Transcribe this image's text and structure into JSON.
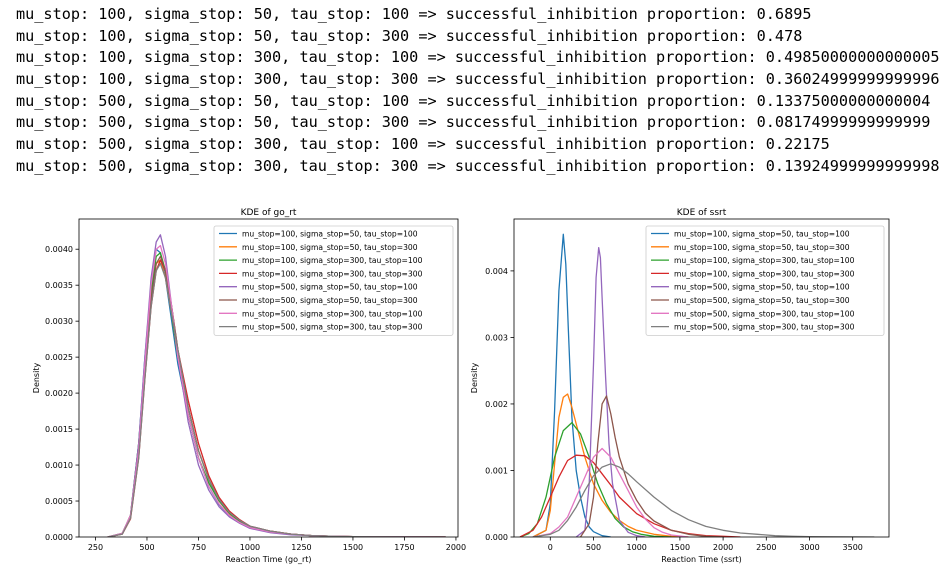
{
  "output_lines": [
    "mu_stop: 100, sigma_stop: 50, tau_stop: 100 => successful_inhibition proportion: 0.6895",
    "mu_stop: 100, sigma_stop: 50, tau_stop: 300 => successful_inhibition proportion: 0.478",
    "mu_stop: 100, sigma_stop: 300, tau_stop: 100 => successful_inhibition proportion: 0.49850000000000005",
    "mu_stop: 100, sigma_stop: 300, tau_stop: 300 => successful_inhibition proportion: 0.36024999999999996",
    "mu_stop: 500, sigma_stop: 50, tau_stop: 100 => successful_inhibition proportion: 0.13375000000000004",
    "mu_stop: 500, sigma_stop: 50, tau_stop: 300 => successful_inhibition proportion: 0.08174999999999999",
    "mu_stop: 500, sigma_stop: 300, tau_stop: 100 => successful_inhibition proportion: 0.22175",
    "mu_stop: 500, sigma_stop: 300, tau_stop: 300 => successful_inhibition proportion: 0.13924999999999998"
  ],
  "colors": [
    "#1f77b4",
    "#ff7f0e",
    "#2ca02c",
    "#d62728",
    "#9467bd",
    "#8c564b",
    "#e377c2",
    "#7f7f7f"
  ],
  "chart_data": [
    {
      "type": "line",
      "title": "KDE of go_rt",
      "xlabel": "Reaction Time (go_rt)",
      "ylabel": "Density",
      "xlim": [
        170,
        2010
      ],
      "ylim": [
        0,
        0.00442
      ],
      "xticks": [
        250,
        500,
        750,
        1000,
        1250,
        1500,
        1750,
        2000
      ],
      "xtick_labels": [
        "250",
        "500",
        "750",
        "1000",
        "1250",
        "1500",
        "1750",
        "2000"
      ],
      "yticks": [
        0,
        0.0005,
        0.001,
        0.0015,
        0.002,
        0.0025,
        0.003,
        0.0035,
        0.004
      ],
      "ytick_labels": [
        "0.0000",
        "0.0005",
        "0.0010",
        "0.0015",
        "0.0020",
        "0.0025",
        "0.0030",
        "0.0035",
        "0.0040"
      ],
      "legend_position": "top-right",
      "grid": false,
      "series": [
        {
          "name": "mu_stop=100, sigma_stop=50, tau_stop=100",
          "x": [
            310,
            380,
            420,
            460,
            490,
            520,
            545,
            565,
            590,
            620,
            650,
            700,
            750,
            800,
            850,
            900,
            950,
            1000,
            1100,
            1200,
            1300,
            1400,
            1500,
            1600,
            1800,
            1950
          ],
          "y": [
            0,
            5e-05,
            0.0003,
            0.0013,
            0.0025,
            0.0035,
            0.004,
            0.00395,
            0.0036,
            0.003,
            0.0024,
            0.0017,
            0.0011,
            0.0007,
            0.00045,
            0.0003,
            0.0002,
            0.00013,
            7e-05,
            4e-05,
            2e-05,
            1e-05,
            5e-06,
            3e-06,
            1e-06,
            0
          ]
        },
        {
          "name": "mu_stop=100, sigma_stop=50, tau_stop=300",
          "x": [
            310,
            380,
            420,
            460,
            490,
            520,
            545,
            565,
            590,
            620,
            650,
            700,
            750,
            800,
            850,
            900,
            950,
            1000,
            1100,
            1200,
            1300,
            1400,
            1500,
            1600,
            1800,
            1950
          ],
          "y": [
            0,
            5e-05,
            0.0003,
            0.0012,
            0.0023,
            0.0033,
            0.0038,
            0.00385,
            0.0036,
            0.0031,
            0.0025,
            0.0018,
            0.0012,
            0.0008,
            0.0005,
            0.00032,
            0.00022,
            0.00014,
            8e-05,
            4e-05,
            2e-05,
            1e-05,
            5e-06,
            3e-06,
            1e-06,
            0
          ]
        },
        {
          "name": "mu_stop=100, sigma_stop=300, tau_stop=100",
          "x": [
            310,
            380,
            420,
            460,
            490,
            520,
            545,
            565,
            590,
            620,
            650,
            700,
            750,
            800,
            850,
            900,
            950,
            1000,
            1100,
            1200,
            1300,
            1400,
            1500,
            1600,
            1800,
            1950
          ],
          "y": [
            0,
            5e-05,
            0.0003,
            0.0013,
            0.0024,
            0.0034,
            0.0039,
            0.00395,
            0.0037,
            0.0031,
            0.0025,
            0.0017,
            0.0011,
            0.00075,
            0.0005,
            0.00033,
            0.00022,
            0.00014,
            7e-05,
            4e-05,
            2e-05,
            1e-05,
            5e-06,
            3e-06,
            1e-06,
            0
          ]
        },
        {
          "name": "mu_stop=100, sigma_stop=300, tau_stop=300",
          "x": [
            310,
            380,
            420,
            460,
            490,
            520,
            545,
            565,
            590,
            620,
            650,
            700,
            750,
            800,
            850,
            900,
            950,
            1000,
            1100,
            1200,
            1300,
            1400,
            1500,
            1600,
            1800,
            1950
          ],
          "y": [
            0,
            4e-05,
            0.00025,
            0.0011,
            0.0022,
            0.0032,
            0.0037,
            0.00385,
            0.0037,
            0.0032,
            0.0026,
            0.0019,
            0.0013,
            0.00085,
            0.00055,
            0.00036,
            0.00024,
            0.00015,
            8e-05,
            4e-05,
            2e-05,
            1e-05,
            5e-06,
            3e-06,
            1e-06,
            0
          ]
        },
        {
          "name": "mu_stop=500, sigma_stop=50, tau_stop=100",
          "x": [
            310,
            380,
            420,
            460,
            490,
            520,
            545,
            565,
            590,
            620,
            650,
            700,
            750,
            800,
            850,
            900,
            950,
            1000,
            1100,
            1200,
            1300,
            1400,
            1500,
            1600,
            1800,
            1950
          ],
          "y": [
            0,
            5e-05,
            0.0003,
            0.0013,
            0.0025,
            0.0036,
            0.0041,
            0.0042,
            0.0039,
            0.0032,
            0.0025,
            0.0016,
            0.001,
            0.00065,
            0.00042,
            0.00028,
            0.00019,
            0.00012,
            6e-05,
            3e-05,
            2e-05,
            1e-05,
            5e-06,
            3e-06,
            1e-06,
            0
          ]
        },
        {
          "name": "mu_stop=500, sigma_stop=50, tau_stop=300",
          "x": [
            310,
            380,
            420,
            460,
            490,
            520,
            545,
            565,
            590,
            620,
            650,
            700,
            750,
            800,
            850,
            900,
            950,
            1000,
            1100,
            1200,
            1300,
            1400,
            1500,
            1600,
            1800,
            1950
          ],
          "y": [
            0,
            4e-05,
            0.00028,
            0.0012,
            0.0023,
            0.0033,
            0.0038,
            0.0039,
            0.0037,
            0.0032,
            0.0026,
            0.0018,
            0.0012,
            0.0008,
            0.00052,
            0.00034,
            0.00023,
            0.00015,
            8e-05,
            4e-05,
            2e-05,
            1e-05,
            5e-06,
            3e-06,
            1e-06,
            0
          ]
        },
        {
          "name": "mu_stop=500, sigma_stop=300, tau_stop=100",
          "x": [
            310,
            380,
            420,
            460,
            490,
            520,
            545,
            565,
            590,
            620,
            650,
            700,
            750,
            800,
            850,
            900,
            950,
            1000,
            1100,
            1200,
            1300,
            1400,
            1500,
            1600,
            1800,
            1950
          ],
          "y": [
            0,
            5e-05,
            0.0003,
            0.0012,
            0.0024,
            0.0035,
            0.004,
            0.00405,
            0.0038,
            0.0032,
            0.0025,
            0.0017,
            0.0011,
            0.0007,
            0.00046,
            0.0003,
            0.0002,
            0.00013,
            7e-05,
            4e-05,
            2e-05,
            1e-05,
            5e-06,
            3e-06,
            1e-06,
            0
          ]
        },
        {
          "name": "mu_stop=500, sigma_stop=300, tau_stop=300",
          "x": [
            310,
            380,
            420,
            460,
            490,
            520,
            545,
            565,
            590,
            620,
            650,
            700,
            750,
            800,
            850,
            900,
            950,
            1000,
            1100,
            1200,
            1300,
            1400,
            1500,
            1600,
            1800,
            1950
          ],
          "y": [
            0,
            4e-05,
            0.00026,
            0.0011,
            0.0022,
            0.0032,
            0.0037,
            0.0038,
            0.0036,
            0.0031,
            0.0026,
            0.0018,
            0.0012,
            0.0008,
            0.00052,
            0.00034,
            0.00023,
            0.00015,
            8e-05,
            4e-05,
            2e-05,
            1e-05,
            5e-06,
            3e-06,
            1e-06,
            0
          ]
        }
      ]
    },
    {
      "type": "line",
      "title": "KDE of ssrt",
      "xlabel": "Reaction Time (ssrt)",
      "ylabel": "Density",
      "xlim": [
        -420,
        3920
      ],
      "ylim": [
        0,
        0.00478
      ],
      "xticks": [
        0,
        500,
        1000,
        1500,
        2000,
        2500,
        3000,
        3500
      ],
      "xtick_labels": [
        "0",
        "500",
        "1000",
        "1500",
        "2000",
        "2500",
        "3000",
        "3500"
      ],
      "yticks": [
        0,
        0.001,
        0.002,
        0.003,
        0.004
      ],
      "ytick_labels": [
        "0.000",
        "0.001",
        "0.002",
        "0.003",
        "0.004"
      ],
      "legend_position": "top-right",
      "grid": false,
      "series": [
        {
          "name": "mu_stop=100, sigma_stop=50, tau_stop=100",
          "x": [
            -200,
            -50,
            0,
            50,
            100,
            150,
            180,
            210,
            250,
            300,
            350,
            400,
            450,
            500,
            600,
            700
          ],
          "y": [
            0,
            0.0001,
            0.0005,
            0.0019,
            0.0037,
            0.00455,
            0.0041,
            0.0031,
            0.0018,
            0.001,
            0.0006,
            0.0003,
            0.00015,
            8e-05,
            2e-05,
            0
          ]
        },
        {
          "name": "mu_stop=100, sigma_stop=50, tau_stop=300",
          "x": [
            -200,
            -50,
            0,
            50,
            100,
            150,
            200,
            250,
            300,
            400,
            500,
            600,
            700,
            800,
            900,
            1000,
            1200,
            1400,
            1600
          ],
          "y": [
            0,
            0.0001,
            0.0004,
            0.0011,
            0.0018,
            0.0021,
            0.00215,
            0.00195,
            0.0017,
            0.0012,
            0.0008,
            0.00055,
            0.00037,
            0.00025,
            0.00016,
            0.0001,
            4e-05,
            1e-05,
            0
          ]
        },
        {
          "name": "mu_stop=100, sigma_stop=300, tau_stop=100",
          "x": [
            -350,
            -250,
            -150,
            -50,
            50,
            150,
            250,
            350,
            450,
            550,
            650,
            750,
            850,
            950,
            1050,
            1200,
            1400
          ],
          "y": [
            0,
            5e-05,
            0.0002,
            0.0006,
            0.0012,
            0.0016,
            0.00172,
            0.00155,
            0.0012,
            0.0008,
            0.0005,
            0.00028,
            0.00015,
            8e-05,
            4e-05,
            1e-05,
            0
          ]
        },
        {
          "name": "mu_stop=100, sigma_stop=300, tau_stop=300",
          "x": [
            -350,
            -200,
            -100,
            0,
            100,
            200,
            300,
            400,
            500,
            600,
            700,
            800,
            1000,
            1200,
            1400,
            1600,
            1800,
            2000,
            2200
          ],
          "y": [
            0,
            0.0001,
            0.0003,
            0.0006,
            0.0009,
            0.00115,
            0.00123,
            0.00122,
            0.00112,
            0.00095,
            0.00078,
            0.0006,
            0.00035,
            0.0002,
            0.0001,
            5e-05,
            2e-05,
            1e-05,
            0
          ]
        },
        {
          "name": "mu_stop=500, sigma_stop=50, tau_stop=100",
          "x": [
            300,
            400,
            450,
            500,
            530,
            560,
            580,
            600,
            640,
            680,
            720,
            800,
            900,
            1000,
            1100
          ],
          "y": [
            0,
            0.0001,
            0.0008,
            0.0026,
            0.0039,
            0.00435,
            0.0042,
            0.0036,
            0.0024,
            0.0014,
            0.0008,
            0.00025,
            7e-05,
            2e-05,
            0
          ]
        },
        {
          "name": "mu_stop=500, sigma_stop=50, tau_stop=300",
          "x": [
            350,
            450,
            500,
            550,
            600,
            650,
            700,
            750,
            800,
            900,
            1000,
            1100,
            1200,
            1400,
            1600,
            1800,
            2000
          ],
          "y": [
            0,
            0.0002,
            0.0006,
            0.0014,
            0.002,
            0.00212,
            0.00185,
            0.0015,
            0.0012,
            0.0008,
            0.00055,
            0.00036,
            0.00024,
            0.0001,
            4e-05,
            1e-05,
            0
          ]
        },
        {
          "name": "mu_stop=500, sigma_stop=300, tau_stop=100",
          "x": [
            -200,
            0,
            100,
            200,
            300,
            400,
            500,
            600,
            700,
            800,
            900,
            1000,
            1100,
            1200,
            1300,
            1400,
            1600
          ],
          "y": [
            0,
            5e-05,
            0.00015,
            0.0003,
            0.0006,
            0.0009,
            0.0012,
            0.00133,
            0.0012,
            0.00095,
            0.0007,
            0.00045,
            0.00027,
            0.00014,
            7e-05,
            3e-05,
            0
          ]
        },
        {
          "name": "mu_stop=500, sigma_stop=300, tau_stop=300",
          "x": [
            -200,
            0,
            100,
            200,
            300,
            400,
            500,
            600,
            700,
            800,
            900,
            1000,
            1200,
            1400,
            1600,
            1800,
            2000,
            2200,
            2400,
            2600,
            2800,
            3000,
            3200,
            3500,
            3750
          ],
          "y": [
            0,
            4e-05,
            0.0001,
            0.00025,
            0.00045,
            0.0007,
            0.00092,
            0.00105,
            0.0011,
            0.00105,
            0.00095,
            0.00083,
            0.0006,
            0.0004,
            0.00026,
            0.00016,
            0.0001,
            6e-05,
            4e-05,
            2e-05,
            1e-05,
            5e-06,
            3e-06,
            1e-06,
            0
          ]
        }
      ]
    }
  ]
}
